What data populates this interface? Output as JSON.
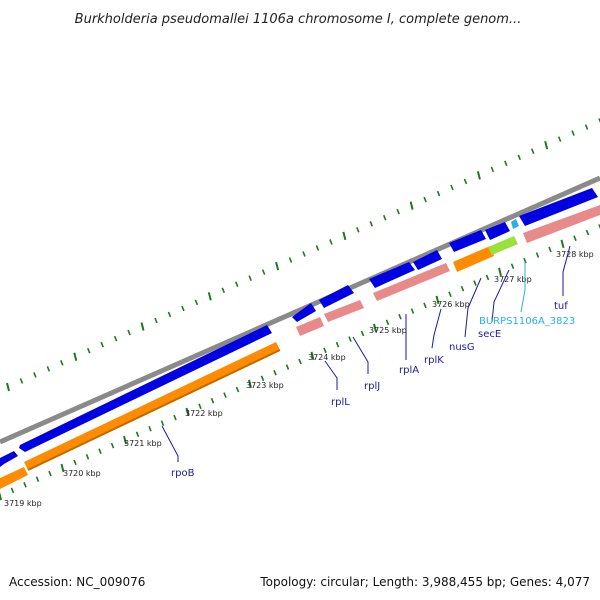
{
  "title": "Burkholderia pseudomallei 1106a chromosome I, complete genom...",
  "footer": {
    "accession": "Accession: NC_009076",
    "summary": "Topology: circular; Length: 3,988,455 bp; Genes: 4,077"
  },
  "ruler_labels": [
    "3719 kbp",
    "3720 kbp",
    "3721 kbp",
    "3722 kbp",
    "3723 kbp",
    "3724 kbp",
    "3725 kbp",
    "3726 kbp",
    "3727 kbp",
    "3728 kbp"
  ],
  "gene_labels": [
    "rpoB",
    "rplL",
    "rplJ",
    "rplA",
    "rplK",
    "nusG",
    "secE",
    "BURPS1106A_3823",
    "tuf"
  ],
  "colors": {
    "backbone": "#8a8a8a",
    "forward_gene": "#0000e0",
    "cds_orange": "#ff8c00",
    "cds_pink": "#e98a8a",
    "cds_green": "#9be13c",
    "tick": "#1f7a1f",
    "label_line": "#1a1aa0",
    "label_cyan": "#2ab0e0"
  }
}
